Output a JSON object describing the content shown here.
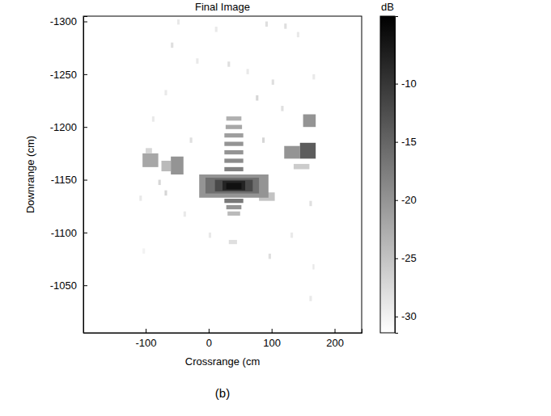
{
  "chart_data": {
    "type": "heatmap",
    "title": "Final Image",
    "x_label": "Crossrange (cm",
    "y_label": "Downrange (cm)",
    "caption": "(b)",
    "xlim": [
      -199,
      243
    ],
    "xticks": [
      -100,
      0,
      100,
      200
    ],
    "ylim": [
      -1305,
      -1005
    ],
    "yticks": [
      -1300,
      -1250,
      -1200,
      -1150,
      -1100,
      -1050
    ],
    "colorbar": {
      "title": "dB",
      "range": [
        -31.4,
        -4.2
      ],
      "ticks": [
        -10,
        -15,
        -20,
        -25,
        -30
      ],
      "colors": [
        "#ffffff",
        "#000000"
      ]
    },
    "cells": [
      [
        -50,
        -46,
        -1302,
        -1297,
        -29
      ],
      [
        10,
        14,
        -1295,
        -1290,
        -29
      ],
      [
        90,
        94,
        -1300,
        -1295,
        -28
      ],
      [
        120,
        124,
        -1298,
        -1293,
        -28
      ],
      [
        140,
        144,
        -1290,
        -1285,
        -29
      ],
      [
        -20,
        -16,
        -1265,
        -1260,
        -29
      ],
      [
        30,
        34,
        -1262,
        -1257,
        -28
      ],
      [
        60,
        64,
        -1255,
        -1250,
        -29
      ],
      [
        100,
        104,
        -1245,
        -1240,
        -28
      ],
      [
        -70,
        -66,
        -1235,
        -1230,
        -29
      ],
      [
        75,
        79,
        -1230,
        -1225,
        -27
      ],
      [
        -90,
        -86,
        -1210,
        -1205,
        -29
      ],
      [
        115,
        119,
        -1220,
        -1215,
        -28
      ],
      [
        165,
        169,
        -1250,
        -1245,
        -29
      ],
      [
        -110,
        -106,
        -1135,
        -1130,
        -29
      ],
      [
        -40,
        -36,
        -1120,
        -1115,
        -29
      ],
      [
        0,
        4,
        -1100,
        -1095,
        -29
      ],
      [
        95,
        99,
        -1080,
        -1075,
        -28
      ],
      [
        160,
        164,
        -1130,
        -1125,
        -28
      ],
      [
        165,
        168,
        -1070,
        -1065,
        -29
      ],
      [
        -105,
        -101,
        -1085,
        -1080,
        -30
      ],
      [
        130,
        134,
        -1100,
        -1095,
        -29
      ],
      [
        -30,
        -26,
        -1190,
        -1185,
        -28
      ],
      [
        85,
        89,
        -1190,
        -1185,
        -27
      ],
      [
        160,
        164,
        -1040,
        -1035,
        -29
      ],
      [
        -60,
        -56,
        -1280,
        -1275,
        -28
      ],
      [
        -70,
        -66,
        -1140,
        -1135,
        -27
      ],
      [
        -80,
        -76,
        -1150,
        -1145,
        -27
      ],
      [
        -105,
        -80,
        -1175,
        -1162,
        -22
      ],
      [
        -75,
        -60,
        -1168,
        -1158,
        -24
      ],
      [
        -60,
        -40,
        -1172,
        -1155,
        -20
      ],
      [
        -100,
        -90,
        -1180,
        -1175,
        -27
      ],
      [
        135,
        160,
        -1165,
        -1160,
        -26
      ],
      [
        120,
        145,
        -1182,
        -1170,
        -20
      ],
      [
        145,
        170,
        -1185,
        -1170,
        -14
      ],
      [
        150,
        170,
        -1212,
        -1200,
        -20
      ],
      [
        80,
        105,
        -1138,
        -1130,
        -25
      ],
      [
        25,
        55,
        -1162,
        -1158,
        -18
      ],
      [
        25,
        55,
        -1170,
        -1166,
        -19
      ],
      [
        25,
        55,
        -1178,
        -1174,
        -20
      ],
      [
        25,
        55,
        -1186,
        -1182,
        -20
      ],
      [
        25,
        55,
        -1194,
        -1190,
        -21
      ],
      [
        27,
        53,
        -1202,
        -1198,
        -22
      ],
      [
        28,
        52,
        -1210,
        -1206,
        -23
      ],
      [
        25,
        55,
        -1132,
        -1128,
        -17
      ],
      [
        28,
        52,
        -1126,
        -1122,
        -20
      ],
      [
        30,
        50,
        -1120,
        -1116,
        -24
      ],
      [
        32,
        45,
        -1093,
        -1089,
        -28
      ],
      [
        -15,
        95,
        -1155,
        -1133,
        -20
      ],
      [
        -5,
        80,
        -1152,
        -1137,
        -16
      ],
      [
        10,
        70,
        -1150,
        -1139,
        -12
      ],
      [
        22,
        58,
        -1149,
        -1140,
        -8
      ],
      [
        28,
        52,
        -1147,
        -1141,
        -6
      ]
    ]
  }
}
